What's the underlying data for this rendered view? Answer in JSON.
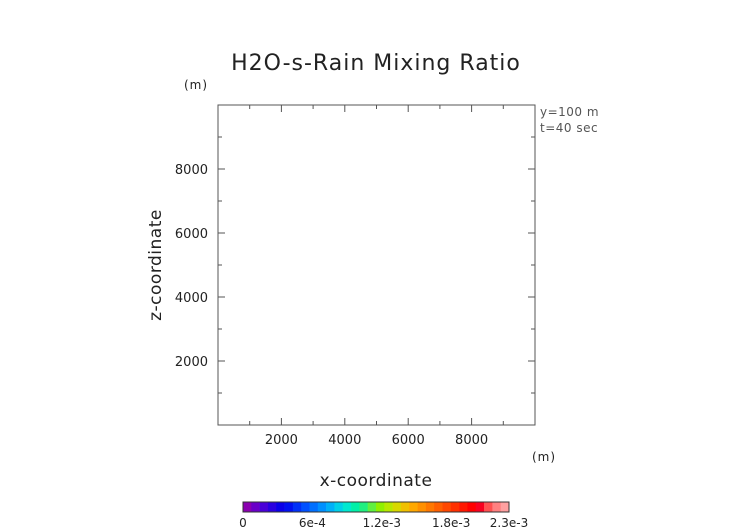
{
  "chart_data": {
    "type": "heatmap",
    "title": "H2O-s-Rain Mixing Ratio",
    "xlabel": "x-coordinate",
    "ylabel": "z-coordinate",
    "xunit": "(m)",
    "yunit": "(m)",
    "xlim": [
      0,
      10000
    ],
    "ylim": [
      0,
      10000
    ],
    "xticks": [
      {
        "value": 2000,
        "label": "2000"
      },
      {
        "value": 4000,
        "label": "4000"
      },
      {
        "value": 6000,
        "label": "6000"
      },
      {
        "value": 8000,
        "label": "8000"
      }
    ],
    "yticks": [
      {
        "value": 2000,
        "label": "2000"
      },
      {
        "value": 4000,
        "label": "4000"
      },
      {
        "value": 6000,
        "label": "6000"
      },
      {
        "value": 8000,
        "label": "8000"
      }
    ],
    "annotations": [
      "y=100 m",
      "t=40 sec"
    ],
    "values": [],
    "colorbar": {
      "min": 0,
      "max": 0.0023,
      "ticks": [
        {
          "value": 0,
          "label": "0"
        },
        {
          "value": 0.0006,
          "label": "6e-4"
        },
        {
          "value": 0.0012,
          "label": "1.2e-3"
        },
        {
          "value": 0.0018,
          "label": "1.8e-3"
        },
        {
          "value": 0.0023,
          "label": "2.3e-3"
        }
      ],
      "colors": [
        "#8a00b0",
        "#6a00c8",
        "#4a00d8",
        "#2a00e0",
        "#0a00e8",
        "#0010f0",
        "#0030f8",
        "#0050ff",
        "#0070ff",
        "#0090ff",
        "#00b0f8",
        "#00d0e8",
        "#00e8d0",
        "#00f0a8",
        "#20f080",
        "#60f040",
        "#90f000",
        "#b8e800",
        "#d8d800",
        "#f0c000",
        "#ffa800",
        "#ff9000",
        "#ff7800",
        "#ff6000",
        "#ff4800",
        "#ff3000",
        "#ff1800",
        "#ff0000",
        "#f80020",
        "#ff5050",
        "#ff8080",
        "#ffa0a0"
      ]
    }
  }
}
